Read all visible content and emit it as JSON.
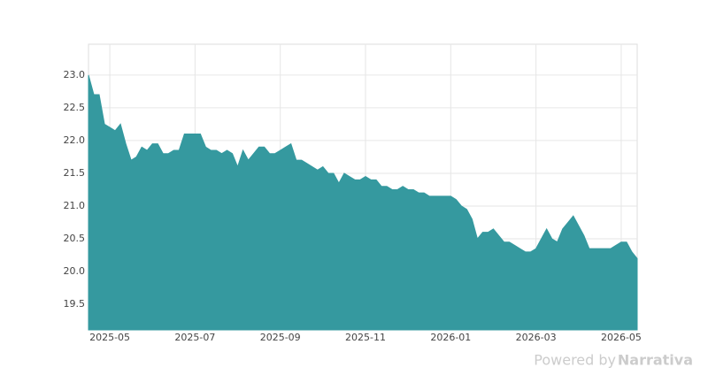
{
  "chart_data": {
    "type": "area",
    "categories": [
      null,
      null,
      null,
      null,
      "2025-05",
      null,
      null,
      null,
      null,
      null,
      null,
      null,
      null,
      null,
      null,
      null,
      null,
      null,
      null,
      null,
      "2025-07",
      null,
      null,
      null,
      null,
      null,
      null,
      null,
      null,
      null,
      null,
      null,
      null,
      null,
      null,
      null,
      "2025-09",
      null,
      null,
      null,
      null,
      null,
      null,
      null,
      null,
      null,
      null,
      null,
      null,
      null,
      null,
      null,
      "2025-11",
      null,
      null,
      null,
      null,
      null,
      null,
      null,
      null,
      null,
      null,
      null,
      null,
      null,
      null,
      null,
      "2026-01",
      null,
      null,
      null,
      null,
      null,
      null,
      null,
      null,
      null,
      null,
      null,
      null,
      null,
      null,
      null,
      "2026-03",
      null,
      null,
      null,
      null,
      null,
      null,
      null,
      null,
      null,
      null,
      null,
      null,
      null,
      null,
      null,
      "2026-05",
      null,
      null,
      null
    ],
    "values": [
      23.0,
      22.7,
      22.7,
      22.25,
      22.2,
      22.15,
      22.25,
      21.95,
      21.7,
      21.75,
      21.9,
      21.85,
      21.95,
      21.95,
      21.8,
      21.8,
      21.85,
      21.85,
      22.1,
      22.1,
      22.1,
      22.1,
      21.9,
      21.85,
      21.85,
      21.8,
      21.85,
      21.8,
      21.6,
      21.85,
      21.7,
      21.8,
      21.9,
      21.9,
      21.8,
      21.8,
      21.85,
      21.9,
      21.95,
      21.7,
      21.7,
      21.65,
      21.6,
      21.55,
      21.6,
      21.5,
      21.5,
      21.35,
      21.5,
      21.45,
      21.4,
      21.4,
      21.45,
      21.4,
      21.4,
      21.3,
      21.3,
      21.25,
      21.25,
      21.3,
      21.25,
      21.25,
      21.2,
      21.2,
      21.15,
      21.15,
      21.15,
      21.15,
      21.15,
      21.1,
      21.0,
      20.95,
      20.8,
      20.5,
      20.6,
      20.6,
      20.65,
      20.55,
      20.45,
      20.45,
      20.4,
      20.35,
      20.3,
      20.3,
      20.35,
      20.5,
      20.65,
      20.5,
      20.45,
      20.65,
      20.75,
      20.85,
      20.7,
      20.55,
      20.35,
      20.35,
      20.35,
      20.35,
      20.35,
      20.4,
      20.45,
      20.45,
      20.3,
      20.2
    ],
    "color": "#35999f",
    "ylim": [
      19.11,
      23.47
    ],
    "yticks": [
      19.5,
      {
        "value": 20,
        "label": "20.0"
      },
      20.5,
      {
        "value": 21,
        "label": "21.0"
      },
      21.5,
      {
        "value": 22,
        "label": "22.0"
      },
      22.5,
      {
        "value": 23,
        "label": "23.0"
      }
    ],
    "grid": true
  },
  "footer": {
    "powered": "Powered by",
    "brand": "Narrativa"
  }
}
